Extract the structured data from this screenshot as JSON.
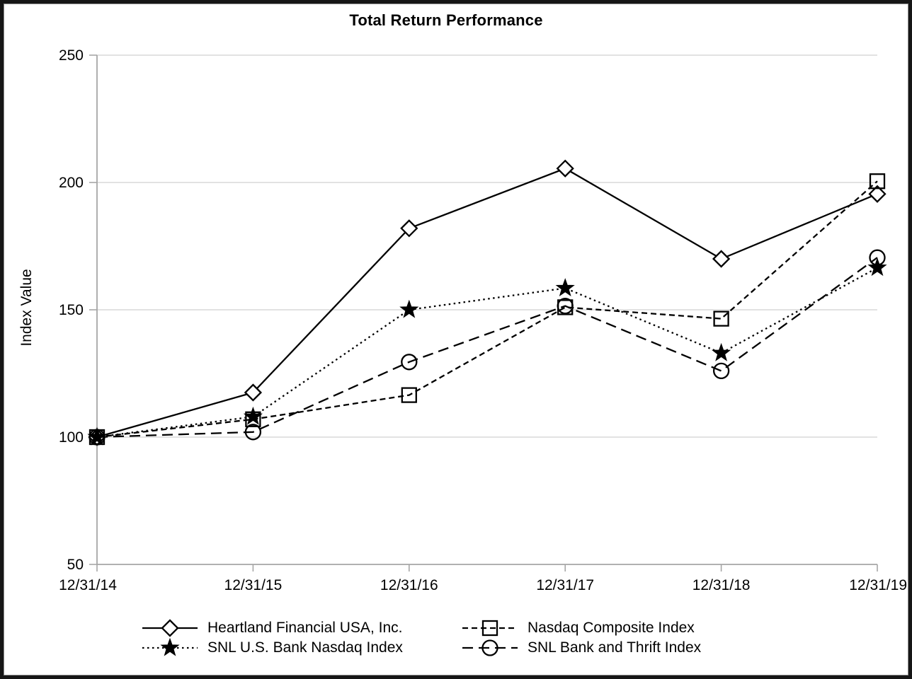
{
  "window": {
    "background": "#ffffff",
    "border_color": "#161616"
  },
  "chart_data": {
    "type": "line",
    "title": "Total Return Performance",
    "xlabel": "",
    "ylabel": "Index Value",
    "categories": [
      "12/31/14",
      "12/31/15",
      "12/31/16",
      "12/31/17",
      "12/31/18",
      "12/31/19"
    ],
    "ylim": [
      50,
      250
    ],
    "yticks": [
      50,
      100,
      150,
      200,
      250
    ],
    "grid": "horizontal",
    "gridline_color": "#d9d9d9",
    "axis_color": "#a6a6a6",
    "legend_position": "bottom",
    "series": [
      {
        "name": "Heartland Financial USA, Inc.",
        "color": "#000000",
        "line_style": "solid",
        "marker": "diamond",
        "marker_fill": "open",
        "values": [
          100,
          117.5,
          182,
          205.5,
          170,
          195.5
        ]
      },
      {
        "name": "Nasdaq Composite Index",
        "color": "#000000",
        "line_style": "dashed",
        "marker": "square",
        "marker_fill": "open",
        "values": [
          100,
          107,
          116.5,
          151,
          146.5,
          200.5
        ]
      },
      {
        "name": "SNL U.S. Bank Nasdaq Index",
        "color": "#000000",
        "line_style": "dotted",
        "marker": "star",
        "marker_fill": "filled",
        "values": [
          100,
          108,
          150,
          158.5,
          133,
          166.5
        ]
      },
      {
        "name": "SNL Bank and Thrift Index",
        "color": "#000000",
        "line_style": "long-dash",
        "marker": "circle",
        "marker_fill": "open",
        "values": [
          100,
          102,
          129.5,
          151.5,
          126,
          170.5
        ]
      }
    ]
  }
}
